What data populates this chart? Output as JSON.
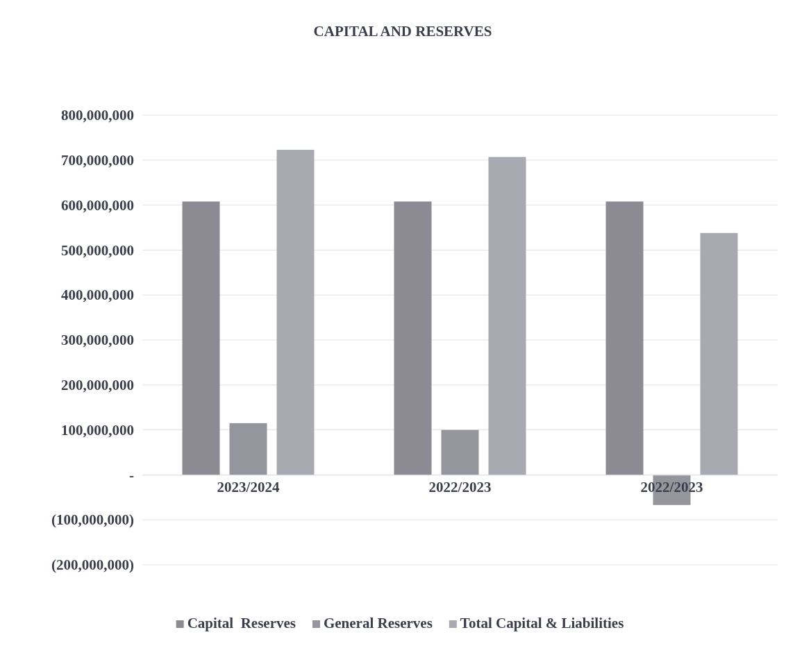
{
  "chart_data": {
    "type": "bar",
    "title": "CAPITAL AND RESERVES",
    "categories": [
      "2023/2024",
      "2022/2023",
      "2022/2023"
    ],
    "series": [
      {
        "name": "Capital  Reserves",
        "color": "#8c8b94",
        "values": [
          608000000,
          608000000,
          608000000
        ]
      },
      {
        "name": "General Reserves",
        "color": "#95959d",
        "values": [
          115000000,
          100000000,
          -67000000
        ]
      },
      {
        "name": "Total Capital & Liabilities",
        "color": "#a9a9b1",
        "values": [
          723000000,
          707000000,
          538000000
        ]
      }
    ],
    "ylim": [
      -200000000,
      800000000
    ],
    "yticks": [
      {
        "value": -200000000,
        "label": "(200,000,000)"
      },
      {
        "value": -100000000,
        "label": "(100,000,000)"
      },
      {
        "value": 0,
        "label": "-"
      },
      {
        "value": 100000000,
        "label": "100,000,000"
      },
      {
        "value": 200000000,
        "label": "200,000,000"
      },
      {
        "value": 300000000,
        "label": "300,000,000"
      },
      {
        "value": 400000000,
        "label": "400,000,000"
      },
      {
        "value": 500000000,
        "label": "500,000,000"
      },
      {
        "value": 600000000,
        "label": "600,000,000"
      },
      {
        "value": 700000000,
        "label": "700,000,000"
      },
      {
        "value": 800000000,
        "label": "800,000,000"
      }
    ],
    "grid": "y",
    "legend": "bottom"
  }
}
